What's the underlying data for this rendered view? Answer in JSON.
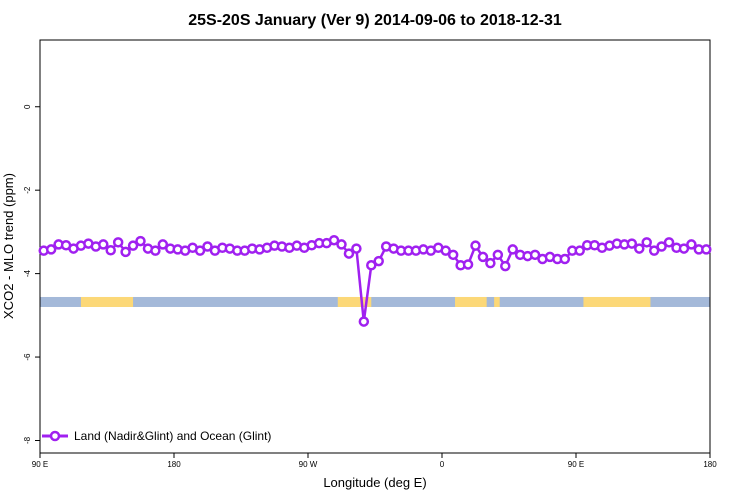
{
  "chart_data": {
    "type": "line",
    "title": "25S-20S January (Ver 9)   2014-09-06 to 2018-12-31",
    "xlabel": "Longitude (deg E)",
    "ylabel": "XCO2 - MLO trend (ppm)",
    "xlim": [
      90,
      450
    ],
    "ylim": [
      -8.3,
      1.6
    ],
    "x_ticks": [
      {
        "value": 90,
        "label": "90 E"
      },
      {
        "value": 162,
        "label": "180"
      },
      {
        "value": 234,
        "label": "90 W"
      },
      {
        "value": 306,
        "label": "0"
      },
      {
        "value": 378,
        "label": "90 E"
      },
      {
        "value": 450,
        "label": "180"
      }
    ],
    "y_ticks": [
      {
        "value": 0,
        "label": "0"
      },
      {
        "value": -2,
        "label": "-2"
      },
      {
        "value": -4,
        "label": "-4"
      },
      {
        "value": -6,
        "label": "-6"
      },
      {
        "value": -8,
        "label": "-8"
      }
    ],
    "legend": {
      "position": "bottom-left",
      "label": "Land (Nadir&Glint) and Ocean (Glint)"
    },
    "colors": {
      "series": "#a020f0",
      "ocean": "#a4b9d9",
      "land": "#fcd878"
    },
    "surface_band": {
      "y_center": -4.68,
      "land_segments": [
        [
          112,
          140
        ],
        [
          250,
          268
        ],
        [
          313,
          330
        ],
        [
          334,
          337
        ],
        [
          382,
          418
        ]
      ]
    },
    "series": [
      {
        "x": [
          92,
          96,
          100,
          104,
          108,
          112,
          116,
          120,
          124,
          128,
          132,
          136,
          140,
          144,
          148,
          152,
          156,
          160,
          164,
          168,
          172,
          176,
          180,
          184,
          188,
          192,
          196,
          200,
          204,
          208,
          212,
          216,
          220,
          224,
          228,
          232,
          236,
          240,
          244,
          248,
          252,
          256,
          260,
          264,
          268,
          272,
          276,
          280,
          284,
          288,
          292,
          296,
          300,
          304,
          308,
          312,
          316,
          320,
          324,
          328,
          332,
          336,
          340,
          344,
          348,
          352,
          356,
          360,
          364,
          368,
          372,
          376,
          380,
          384,
          388,
          392,
          396,
          400,
          404,
          408,
          412,
          416,
          420,
          424,
          428,
          432,
          436,
          440,
          444,
          448
        ],
        "y": [
          -3.45,
          -3.42,
          -3.3,
          -3.32,
          -3.4,
          -3.33,
          -3.28,
          -3.35,
          -3.3,
          -3.44,
          -3.25,
          -3.48,
          -3.33,
          -3.22,
          -3.4,
          -3.45,
          -3.3,
          -3.4,
          -3.42,
          -3.45,
          -3.38,
          -3.45,
          -3.35,
          -3.45,
          -3.38,
          -3.4,
          -3.45,
          -3.45,
          -3.4,
          -3.42,
          -3.38,
          -3.33,
          -3.35,
          -3.38,
          -3.33,
          -3.38,
          -3.32,
          -3.27,
          -3.27,
          -3.2,
          -3.3,
          -3.52,
          -3.4,
          -5.15,
          -3.8,
          -3.7,
          -3.35,
          -3.4,
          -3.45,
          -3.45,
          -3.45,
          -3.42,
          -3.45,
          -3.38,
          -3.45,
          -3.55,
          -3.8,
          -3.78,
          -3.33,
          -3.6,
          -3.75,
          -3.55,
          -3.82,
          -3.42,
          -3.55,
          -3.58,
          -3.55,
          -3.65,
          -3.6,
          -3.65,
          -3.65,
          -3.45,
          -3.45,
          -3.32,
          -3.32,
          -3.38,
          -3.33,
          -3.28,
          -3.3,
          -3.28,
          -3.4,
          -3.25,
          -3.45,
          -3.35,
          -3.25,
          -3.38,
          -3.4,
          -3.3,
          -3.42,
          -3.42
        ]
      }
    ]
  }
}
